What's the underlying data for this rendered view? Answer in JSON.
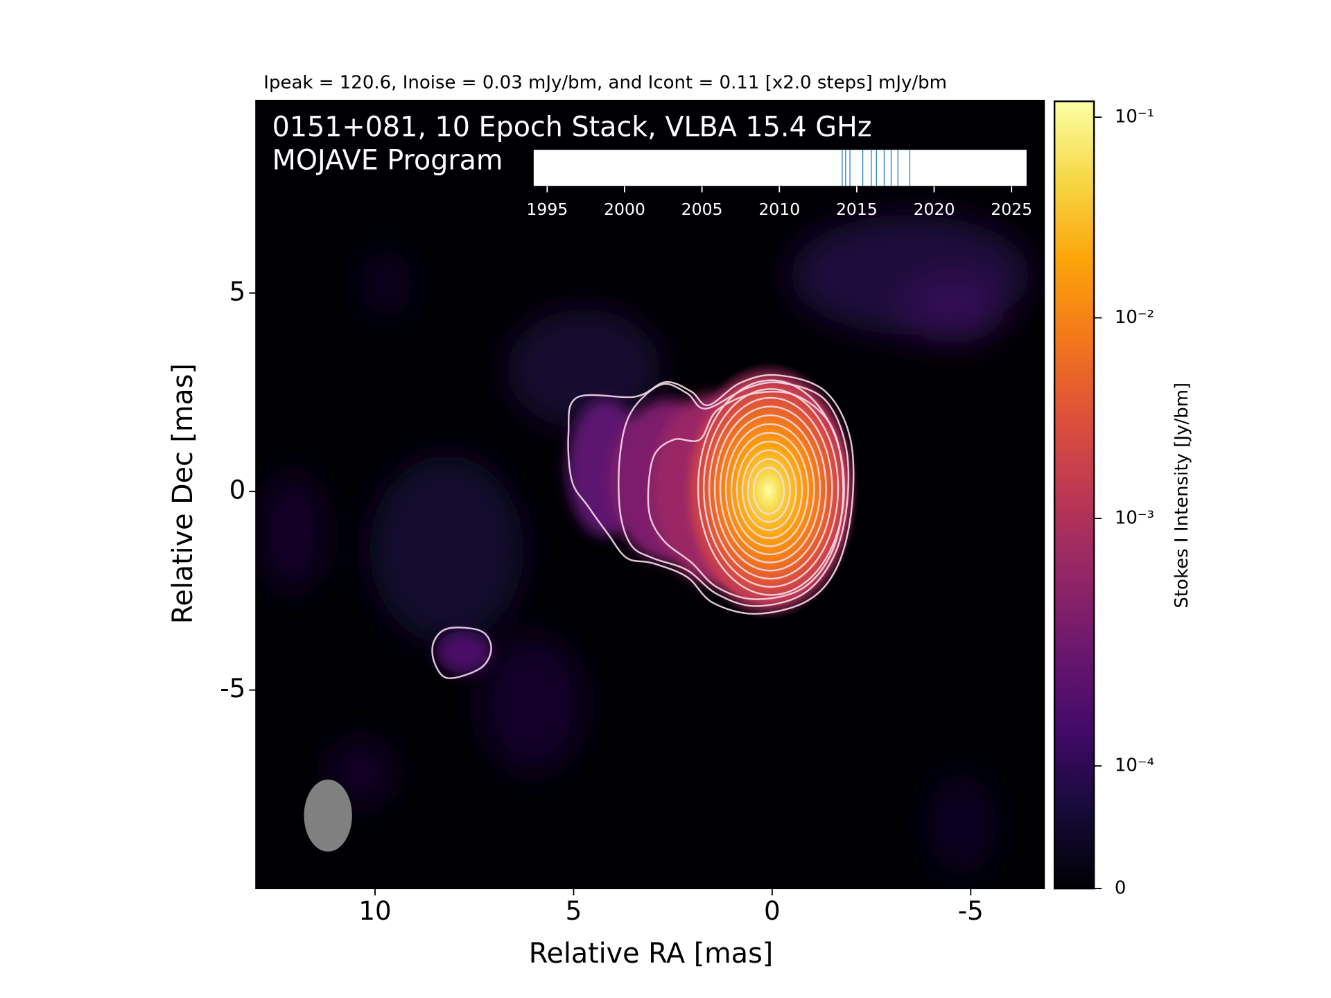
{
  "chart_data": {
    "type": "image",
    "title": "Ipeak = 120.6, Inoise = 0.03 mJy/bm, and Icont = 0.11 [x2.0 steps] mJy/bm",
    "source_label": [
      "0151+081, 10 Epoch Stack, VLBA 15.4 GHz",
      "MOJAVE Program"
    ],
    "x_label": "Relative RA [mas]",
    "y_label": "Relative Dec [mas]",
    "xlim": [
      13,
      -6.85
    ],
    "ylim": [
      -10,
      9.85
    ],
    "xticks": [
      10,
      5,
      0,
      -5
    ],
    "yticks": [
      5,
      0,
      -5
    ],
    "colorbar": {
      "label": "Stokes I Intensity [Jy/bm]",
      "scale": "symlog",
      "clim": [
        0,
        0.12
      ],
      "ticks": [
        0,
        {
          "value": 0.0001,
          "label": "10⁻⁴"
        },
        {
          "value": 0.001,
          "label": "10⁻³"
        },
        {
          "value": 0.01,
          "label": "10⁻²"
        },
        {
          "value": 0.1,
          "label": "10⁻¹"
        }
      ]
    },
    "epochs": {
      "xlim": [
        1994.1,
        2026.0
      ],
      "xticks": [
        1995,
        2000,
        2005,
        2010,
        2015,
        2020,
        2025
      ],
      "values": [
        2014.06,
        2014.28,
        2014.56,
        2015.39,
        2015.94,
        2016.27,
        2016.77,
        2017.22,
        2017.66,
        2018.43
      ],
      "color": "#1f77b4"
    }
  }
}
